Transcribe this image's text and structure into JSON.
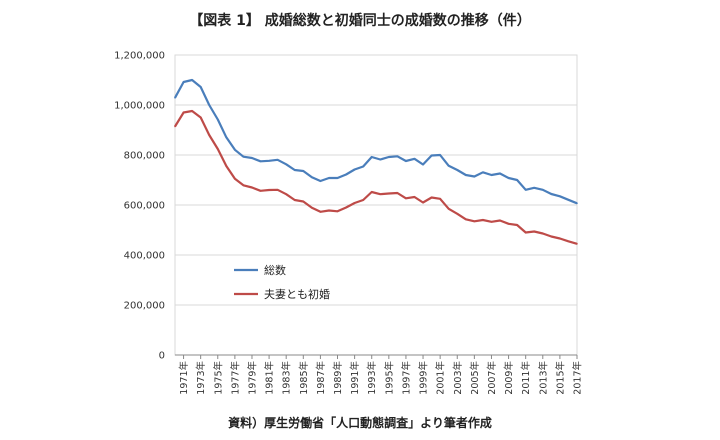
{
  "chart_data": {
    "type": "line",
    "title": "【図表 1】 成婚総数と初婚同士の成婚数の推移（件）",
    "source": "資料）厚生労働省「人口動態調査」より筆者作成",
    "xlabel": "",
    "ylabel": "",
    "ylim": [
      0,
      1200000
    ],
    "yticks": [
      0,
      200000,
      400000,
      600000,
      800000,
      1000000,
      1200000
    ],
    "ytick_labels": [
      "0",
      "200,000",
      "400,000",
      "600,000",
      "800,000",
      "1,000,000",
      "1,200,000"
    ],
    "xtick_labels": [
      "1971年",
      "1973年",
      "1975年",
      "1977年",
      "1979年",
      "1981年",
      "1983年",
      "1985年",
      "1987年",
      "1989年",
      "1991年",
      "1993年",
      "1995年",
      "1997年",
      "1999年",
      "2001年",
      "2003年",
      "2005年",
      "2007年",
      "2009年",
      "2011年",
      "2013年",
      "2015年",
      "2017年"
    ],
    "x": [
      1970,
      1971,
      1972,
      1973,
      1974,
      1975,
      1976,
      1977,
      1978,
      1979,
      1980,
      1981,
      1982,
      1983,
      1984,
      1985,
      1986,
      1987,
      1988,
      1989,
      1990,
      1991,
      1992,
      1993,
      1994,
      1995,
      1996,
      1997,
      1998,
      1999,
      2000,
      2001,
      2002,
      2003,
      2004,
      2005,
      2006,
      2007,
      2008,
      2009,
      2010,
      2011,
      2012,
      2013,
      2014,
      2015,
      2016,
      2017
    ],
    "series": [
      {
        "name": "総数",
        "color": "#4a7ebb",
        "values": [
          1029000,
          1092000,
          1100000,
          1072000,
          1000000,
          942000,
          871000,
          821000,
          793000,
          788000,
          775000,
          777000,
          781000,
          763000,
          740000,
          736000,
          711000,
          696000,
          708000,
          708000,
          722000,
          742000,
          754000,
          792000,
          782000,
          792000,
          795000,
          776000,
          785000,
          762000,
          798000,
          800000,
          757000,
          740000,
          720000,
          714000,
          731000,
          720000,
          726000,
          708000,
          700000,
          661000,
          669000,
          661000,
          644000,
          635000,
          621000,
          607000
        ]
      },
      {
        "name": "夫妻とも初婚",
        "color": "#be4b48",
        "values": [
          914000,
          970000,
          976000,
          950000,
          880000,
          824000,
          756000,
          705000,
          679000,
          670000,
          657000,
          660000,
          661000,
          643000,
          620000,
          614000,
          589000,
          573000,
          578000,
          575000,
          590000,
          608000,
          620000,
          652000,
          643000,
          646000,
          648000,
          627000,
          632000,
          610000,
          630000,
          625000,
          585000,
          565000,
          543000,
          535000,
          540000,
          533000,
          538000,
          525000,
          520000,
          490000,
          494000,
          486000,
          474000,
          466000,
          455000,
          445000
        ]
      }
    ],
    "legend": "inside-left"
  }
}
